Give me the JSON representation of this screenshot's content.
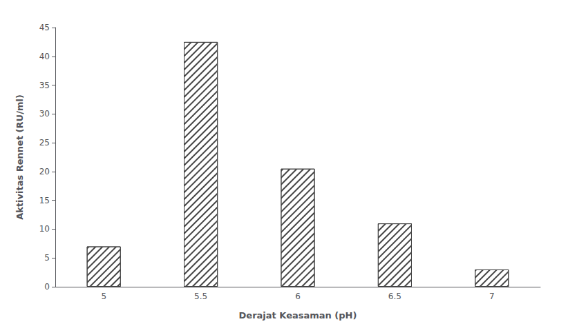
{
  "chart_data": {
    "type": "bar",
    "xlabel": "Derajat Keasaman (pH)",
    "ylabel": "Aktivitas Rennet (RU/ml)",
    "categories": [
      "5",
      "5.5",
      "6",
      "6.5",
      "7"
    ],
    "values": [
      7,
      42.5,
      20.5,
      11,
      3
    ],
    "color": "#ffffff",
    "ylim": [
      0,
      45
    ],
    "yticks": [
      0,
      5,
      10,
      15,
      20,
      25,
      30,
      35,
      40,
      45
    ],
    "grid": false
  }
}
